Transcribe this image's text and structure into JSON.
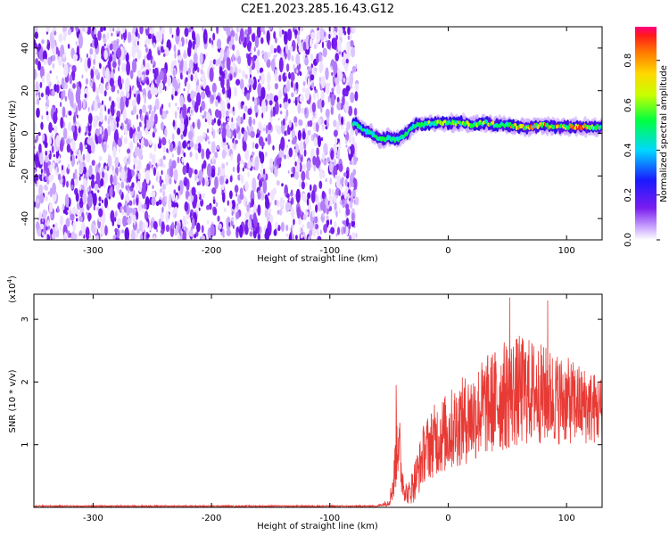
{
  "title": "C2E1.2023.285.16.43.G12",
  "chart_data": [
    {
      "type": "heatmap",
      "xlabel": "Height of straight line (km)",
      "ylabel": "Frequency (Hz)",
      "xlim": [
        -350,
        130
      ],
      "ylim": [
        -50,
        50
      ],
      "x_ticks": [
        -300,
        -200,
        -100,
        0,
        100
      ],
      "y_ticks": [
        -40,
        -20,
        0,
        20,
        40
      ],
      "colorbar": {
        "label": "Normalized spectral amplitude",
        "range": [
          0,
          0.95
        ],
        "ticks": [
          0.0,
          0.2,
          0.4,
          0.6,
          0.8
        ]
      },
      "noise_region_x": [
        -350,
        -80
      ],
      "signal_track": {
        "x": [
          -80,
          -72,
          -65,
          -58,
          -50,
          -42,
          -35,
          -28,
          -20,
          -10,
          0,
          10,
          20,
          30,
          40,
          50,
          60,
          70,
          80,
          90,
          100,
          110,
          120,
          130
        ],
        "y": [
          5,
          2,
          0,
          -3,
          -2,
          -3,
          0,
          4,
          4,
          5,
          5,
          5,
          4,
          5,
          4,
          4,
          3,
          3,
          4,
          3,
          3,
          3,
          3,
          3
        ]
      }
    },
    {
      "type": "line",
      "xlabel": "Height of straight line (km)",
      "ylabel": "SNR (10 * v/v)",
      "multiplier_label": "(x10",
      "multiplier_exp": "4",
      "xlim": [
        -350,
        130
      ],
      "ylim": [
        0,
        3.4
      ],
      "x_ticks": [
        -300,
        -200,
        -100,
        0,
        100
      ],
      "y_ticks": [
        1,
        2,
        3
      ],
      "series": [
        {
          "color": "#e83a35",
          "envelope": {
            "x": [
              -350,
              -60,
              -50,
              -46,
              -44,
              -42,
              -40,
              -37,
              -34,
              -30,
              -25,
              -20,
              -10,
              0,
              10,
              20,
              30,
              40,
              50,
              60,
              70,
              80,
              90,
              100,
              110,
              120,
              130
            ],
            "mean": [
              0.02,
              0.02,
              0.08,
              0.4,
              0.9,
              1.2,
              0.6,
              0.3,
              0.2,
              0.35,
              0.6,
              0.9,
              1.1,
              1.2,
              1.35,
              1.45,
              1.6,
              1.7,
              1.8,
              1.85,
              1.85,
              1.8,
              1.75,
              1.7,
              1.65,
              1.6,
              1.55
            ],
            "amp": [
              0.01,
              0.01,
              0.06,
              0.3,
              0.6,
              0.7,
              0.4,
              0.2,
              0.15,
              0.3,
              0.4,
              0.5,
              0.6,
              0.65,
              0.7,
              0.75,
              0.8,
              0.85,
              0.9,
              0.9,
              0.85,
              0.8,
              0.75,
              0.7,
              0.65,
              0.6,
              0.55
            ],
            "peaks": [
              {
                "x": -44,
                "y": 1.95
              },
              {
                "x": 52,
                "y": 3.35
              },
              {
                "x": 84,
                "y": 3.3
              }
            ]
          }
        }
      ]
    }
  ]
}
